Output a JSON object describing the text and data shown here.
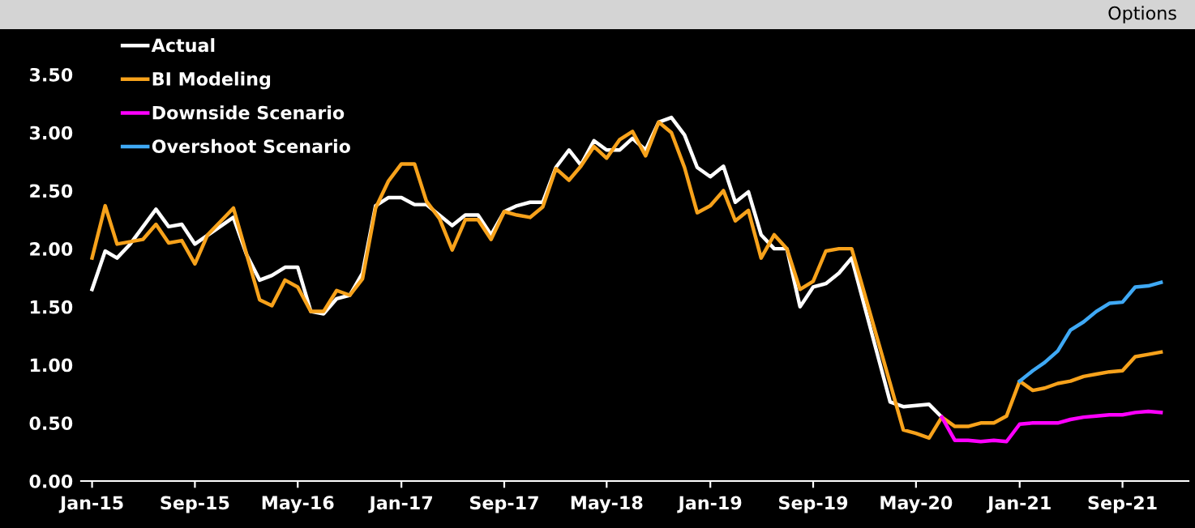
{
  "chart_data": {
    "type": "line",
    "annotations": [
      "Options"
    ],
    "legend": "top left",
    "grid": false,
    "marker": "none",
    "line_style": "solid",
    "xlim": [
      "2014-12-20",
      "2022-02-18"
    ],
    "xticks": [
      {
        "value": "2015-01",
        "label": "Jan-15"
      },
      {
        "value": "2015-09",
        "label": "Sep-15"
      },
      {
        "value": "2016-05",
        "label": "May-16"
      },
      {
        "value": "2017-01",
        "label": "Jan-17"
      },
      {
        "value": "2017-09",
        "label": "Sep-17"
      },
      {
        "value": "2018-05",
        "label": "May-18"
      },
      {
        "value": "2019-01",
        "label": "Jan-19"
      },
      {
        "value": "2019-09",
        "label": "Sep-19"
      },
      {
        "value": "2020-05",
        "label": "May-20"
      },
      {
        "value": "2021-01",
        "label": "Jan-21"
      },
      {
        "value": "2021-09",
        "label": "Sep-21"
      }
    ],
    "ylim": [
      0,
      3.5
    ],
    "yticks": [
      {
        "value": 0,
        "label": "0.00"
      },
      {
        "value": 0.5,
        "label": "0.50"
      },
      {
        "value": 1,
        "label": "1.00"
      },
      {
        "value": 1.5,
        "label": "1.50"
      },
      {
        "value": 2,
        "label": "2.00"
      },
      {
        "value": 2.5,
        "label": "2.50"
      },
      {
        "value": 3,
        "label": "3.00"
      },
      {
        "value": 3.5,
        "label": "3.50"
      }
    ],
    "series": [
      {
        "name": "Actual",
        "color": "#ffffff",
        "x": [
          "2015-01",
          "2015-02",
          "2015-03",
          "2015-04",
          "2015-06",
          "2015-07",
          "2015-08",
          "2015-09",
          "2015-12",
          "2016-01",
          "2016-02",
          "2016-03",
          "2016-04",
          "2016-05",
          "2016-06",
          "2016-07",
          "2016-08",
          "2016-09",
          "2016-10",
          "2016-11",
          "2016-12",
          "2017-01",
          "2017-02",
          "2017-03",
          "2017-05",
          "2017-06",
          "2017-07",
          "2017-08",
          "2017-09",
          "2017-10",
          "2017-11",
          "2017-12",
          "2018-01",
          "2018-02",
          "2018-03",
          "2018-04",
          "2018-05",
          "2018-06",
          "2018-07",
          "2018-08",
          "2018-09",
          "2018-10",
          "2018-11",
          "2018-12",
          "2019-01",
          "2019-02",
          "2019-03",
          "2019-04",
          "2019-05",
          "2019-06",
          "2019-07",
          "2019-08",
          "2019-09",
          "2019-10",
          "2019-11",
          "2019-12",
          "2020-03",
          "2020-04",
          "2020-06",
          "2020-07"
        ],
        "values": [
          1.65,
          1.98,
          1.92,
          2.04,
          2.34,
          2.19,
          2.21,
          2.04,
          2.27,
          1.95,
          1.73,
          1.77,
          1.84,
          1.84,
          1.46,
          1.44,
          1.57,
          1.6,
          1.79,
          2.37,
          2.44,
          2.44,
          2.38,
          2.38,
          2.2,
          2.29,
          2.29,
          2.12,
          2.32,
          2.37,
          2.4,
          2.4,
          2.7,
          2.85,
          2.72,
          2.93,
          2.85,
          2.85,
          2.95,
          2.85,
          3.09,
          3.13,
          2.98,
          2.7,
          2.62,
          2.71,
          2.4,
          2.49,
          2.12,
          2.0,
          2.0,
          1.5,
          1.67,
          1.7,
          1.79,
          1.92,
          0.68,
          0.64,
          0.66,
          0.55
        ]
      },
      {
        "name": "BI Modeling",
        "color": "#f7a21b",
        "x": [
          "2015-01",
          "2015-02",
          "2015-03",
          "2015-05",
          "2015-06",
          "2015-07",
          "2015-08",
          "2015-09",
          "2015-10",
          "2015-12",
          "2016-02",
          "2016-03",
          "2016-04",
          "2016-05",
          "2016-06",
          "2016-07",
          "2016-08",
          "2016-09",
          "2016-10",
          "2016-11",
          "2016-12",
          "2017-01",
          "2017-02",
          "2017-03",
          "2017-04",
          "2017-05",
          "2017-06",
          "2017-07",
          "2017-08",
          "2017-09",
          "2017-10",
          "2017-11",
          "2017-12",
          "2018-01",
          "2018-02",
          "2018-03",
          "2018-04",
          "2018-05",
          "2018-06",
          "2018-07",
          "2018-08",
          "2018-09",
          "2018-10",
          "2018-11",
          "2018-12",
          "2019-01",
          "2019-02",
          "2019-03",
          "2019-04",
          "2019-05",
          "2019-06",
          "2019-07",
          "2019-08",
          "2019-09",
          "2019-10",
          "2019-11",
          "2019-12",
          "2020-03",
          "2020-04",
          "2020-05",
          "2020-06",
          "2020-07",
          "2020-08",
          "2020-09",
          "2020-10",
          "2020-11",
          "2020-12",
          "2021-01",
          "2021-02",
          "2021-03",
          "2021-04",
          "2021-05",
          "2021-06",
          "2021-07",
          "2021-08",
          "2021-09",
          "2021-10",
          "2021-11",
          "2021-12"
        ],
        "values": [
          1.92,
          2.37,
          2.04,
          2.08,
          2.21,
          2.05,
          2.07,
          1.87,
          2.12,
          2.35,
          1.56,
          1.51,
          1.73,
          1.67,
          1.46,
          1.46,
          1.64,
          1.6,
          1.74,
          2.35,
          2.58,
          2.73,
          2.73,
          2.41,
          2.26,
          1.99,
          2.25,
          2.25,
          2.08,
          2.32,
          2.29,
          2.27,
          2.36,
          2.69,
          2.59,
          2.71,
          2.88,
          2.78,
          2.94,
          3.01,
          2.8,
          3.09,
          3.0,
          2.7,
          2.31,
          2.37,
          2.5,
          2.24,
          2.33,
          1.92,
          2.12,
          2.0,
          1.65,
          1.72,
          1.98,
          2.0,
          2.0,
          0.84,
          0.44,
          0.41,
          0.37,
          0.55,
          0.47,
          0.47,
          0.5,
          0.5,
          0.56,
          0.86,
          0.78,
          0.8,
          0.84,
          0.86,
          0.9,
          0.92,
          0.94,
          0.95,
          1.07,
          1.09,
          1.11
        ]
      },
      {
        "name": "Downside Scenario",
        "color": "#ff00ff",
        "x": [
          "2020-07",
          "2020-08",
          "2020-09",
          "2020-10",
          "2020-11",
          "2020-12",
          "2021-01",
          "2021-02",
          "2021-03",
          "2021-04",
          "2021-05",
          "2021-06",
          "2021-07",
          "2021-08",
          "2021-09",
          "2021-10",
          "2021-11",
          "2021-12"
        ],
        "values": [
          0.55,
          0.35,
          0.35,
          0.34,
          0.35,
          0.34,
          0.49,
          0.5,
          0.5,
          0.5,
          0.53,
          0.55,
          0.56,
          0.57,
          0.57,
          0.59,
          0.6,
          0.59
        ]
      },
      {
        "name": "Overshoot Scenario",
        "color": "#3fa9f5",
        "x": [
          "2021-01",
          "2021-02",
          "2021-03",
          "2021-04",
          "2021-05",
          "2021-06",
          "2021-07",
          "2021-08",
          "2021-09",
          "2021-10",
          "2021-11",
          "2021-12"
        ],
        "values": [
          0.86,
          0.95,
          1.02,
          1.12,
          1.3,
          1.37,
          1.46,
          1.53,
          1.54,
          1.67,
          1.68,
          1.71
        ]
      }
    ]
  }
}
